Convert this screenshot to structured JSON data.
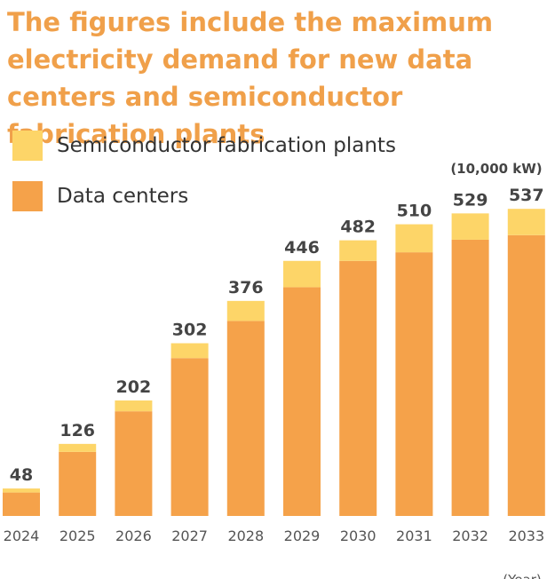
{
  "title": "The figures include the maximum electricity demand for new data centers and semiconductor fabrication plants",
  "legend": [
    {
      "key": "semi",
      "label": "Semiconductor fabrication plants",
      "color": "#fdd568"
    },
    {
      "key": "dc",
      "label": "Data centers",
      "color": "#f5a24a"
    }
  ],
  "unit_label": "(10,000 kW)",
  "x_unit_label": "(Year)",
  "chart_data": {
    "type": "bar",
    "stacked": true,
    "title": "The figures include the maximum electricity demand for new data centers and semiconductor fabrication plants",
    "xlabel": "(Year)",
    "ylabel": "(10,000 kW)",
    "categories": [
      "2024",
      "2025",
      "2026",
      "2027",
      "2028",
      "2029",
      "2030",
      "2031",
      "2032",
      "2033"
    ],
    "series": [
      {
        "name": "Data centers",
        "color": "#f5a24a",
        "values": [
          41,
          112,
          183,
          276,
          341,
          400,
          446,
          461,
          483,
          491
        ]
      },
      {
        "name": "Semiconductor fabrication plants",
        "color": "#fdd568",
        "values": [
          7,
          14,
          19,
          26,
          35,
          46,
          36,
          49,
          46,
          46
        ]
      }
    ],
    "totals": [
      48,
      126,
      202,
      302,
      376,
      446,
      482,
      510,
      529,
      537
    ],
    "ylim": [
      0,
      550
    ]
  }
}
